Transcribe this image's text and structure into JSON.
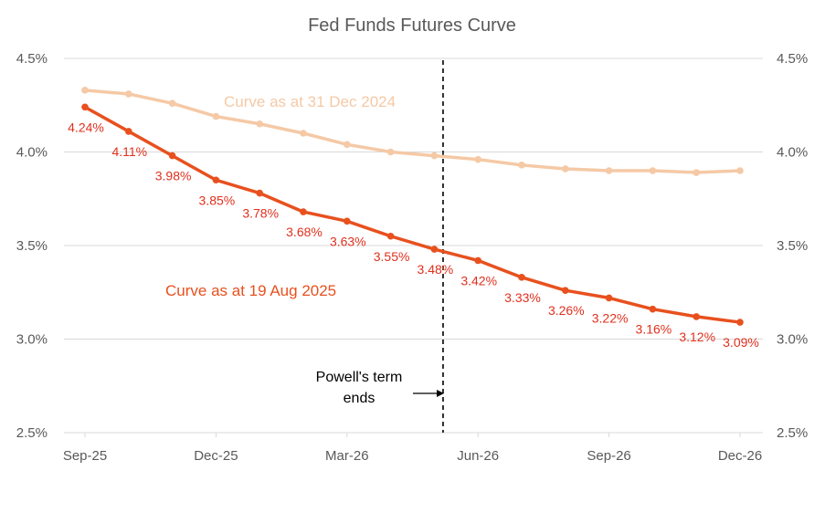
{
  "chart_data": {
    "type": "line",
    "title": "Fed Funds Futures Curve",
    "xlabel": "",
    "ylabel": "",
    "ylim": [
      2.5,
      4.5
    ],
    "y_ticks": [
      "2.5%",
      "3.0%",
      "3.5%",
      "4.0%",
      "4.5%"
    ],
    "y_tick_values": [
      2.5,
      3.0,
      3.5,
      4.0,
      4.5
    ],
    "x_tick_labels": [
      "Sep-25",
      "Dec-25",
      "Mar-26",
      "Jun-26",
      "Sep-26",
      "Dec-26"
    ],
    "x_tick_indices": [
      0,
      3,
      6,
      9,
      12,
      15
    ],
    "x_count": 16,
    "grid": true,
    "series": [
      {
        "name": "Curve as at 31 Dec 2024",
        "color": "#f5c9a6",
        "values": [
          4.33,
          4.31,
          4.26,
          4.19,
          4.15,
          4.1,
          4.04,
          4.0,
          3.98,
          3.96,
          3.93,
          3.91,
          3.9,
          3.9,
          3.89,
          3.9
        ]
      },
      {
        "name": "Curve as at 19 Aug 2025",
        "color": "#e8501e",
        "values": [
          4.24,
          4.11,
          3.98,
          3.85,
          3.78,
          3.68,
          3.63,
          3.55,
          3.48,
          3.42,
          3.33,
          3.26,
          3.22,
          3.16,
          3.12,
          3.09
        ],
        "labels": [
          "4.24%",
          "4.11%",
          "3.98%",
          "3.85%",
          "3.78%",
          "3.68%",
          "3.63%",
          "3.55%",
          "3.48%",
          "3.42%",
          "3.33%",
          "3.26%",
          "3.22%",
          "3.16%",
          "3.12%",
          "3.09%"
        ]
      }
    ],
    "annotations": {
      "vertical_line_index": 8.2,
      "vertical_line_text_line1": "Powell's term",
      "vertical_line_text_line2": "ends"
    }
  },
  "colors": {
    "label_red": "#e0301e",
    "axis_text": "#595959",
    "grid": "#d9d9d9"
  }
}
